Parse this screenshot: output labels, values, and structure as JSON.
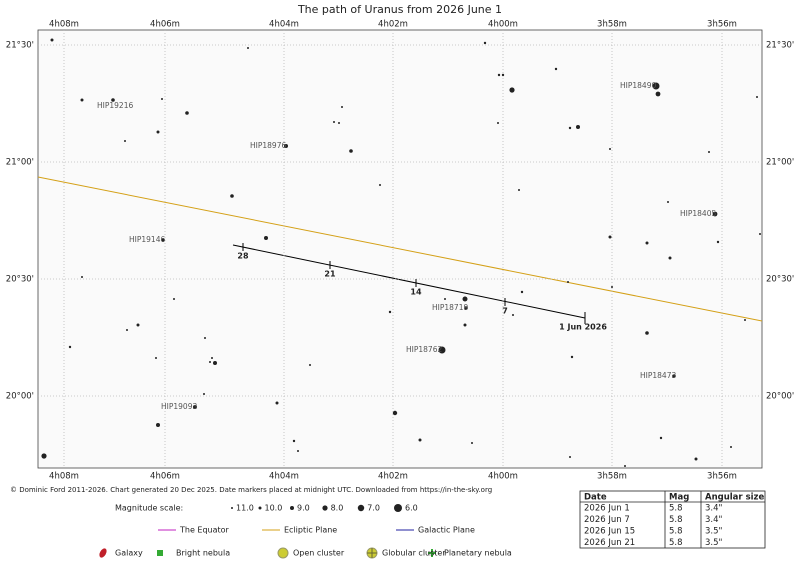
{
  "title": "The path of Uranus from 2026 June 1",
  "ra_labels": [
    "4h08m",
    "4h06m",
    "4h04m",
    "4h02m",
    "4h00m",
    "3h58m",
    "3h56m"
  ],
  "dec_labels": [
    "21°30'",
    "21°00'",
    "20°30'",
    "20°00'"
  ],
  "date_markers": [
    "28",
    "21",
    "14",
    "7"
  ],
  "start_label": "1 Jun 2026",
  "star_labels": [
    "HIP19216",
    "HIP18976",
    "HIP19146",
    "HIP18719",
    "HIP18762",
    "HIP19093",
    "HIP18490",
    "HIP18405",
    "HIP18473"
  ],
  "credit": "© Dominic Ford 2011-2026. Chart generated 20 Dec 2025. Date markers placed at midnight UTC. Downloaded from https://in-the-sky.org",
  "magnitude_scale": {
    "label": "Magnitude scale:",
    "entries": [
      "11.0",
      "10.0",
      "9.0",
      "8.0",
      "7.0",
      "6.0"
    ]
  },
  "line_legend": [
    "The Equator",
    "Ecliptic Plane",
    "Galactic Plane"
  ],
  "symbol_legend": [
    "Galaxy",
    "Bright nebula",
    "Open cluster",
    "Globular cluster",
    "Planetary nebula"
  ],
  "table": {
    "header": [
      "Date",
      "Mag",
      "Angular size"
    ],
    "rows": [
      [
        "2026 Jun 1",
        "5.8",
        "3.4\""
      ],
      [
        "2026 Jun 7",
        "5.8",
        "3.4\""
      ],
      [
        "2026 Jun 15",
        "5.8",
        "3.5\""
      ],
      [
        "2026 Jun 21",
        "5.8",
        "3.5\""
      ]
    ]
  }
}
